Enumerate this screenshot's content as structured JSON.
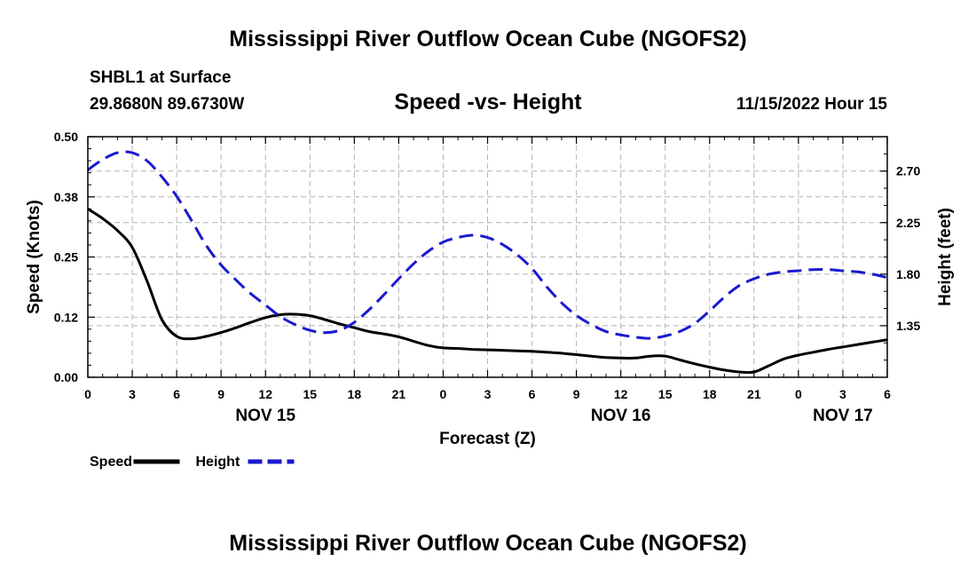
{
  "header": {
    "title": "Mississippi River Outflow Ocean Cube (NGOFS2)",
    "station": "SHBL1 at Surface",
    "coords": "29.8680N  89.6730W",
    "subtitle": "Speed -vs- Height",
    "datetime": "11/15/2022 Hour 15"
  },
  "footer": {
    "title": "Mississippi River Outflow Ocean Cube (NGOFS2)"
  },
  "chart_data": {
    "type": "line",
    "xlabel": "Forecast (Z)",
    "ylabel_left": "Speed (Knots)",
    "ylabel_right": "Height (feet)",
    "x_range_hours": [
      0,
      54
    ],
    "x_tick_hours": [
      0,
      3,
      6,
      9,
      12,
      15,
      18,
      21,
      24,
      27,
      30,
      33,
      36,
      39,
      42,
      45,
      48,
      51,
      54
    ],
    "x_tick_labels": [
      "0",
      "3",
      "6",
      "9",
      "12",
      "15",
      "18",
      "21",
      "0",
      "3",
      "6",
      "9",
      "12",
      "15",
      "18",
      "21",
      "0",
      "3",
      "6"
    ],
    "day_labels": [
      {
        "hour": 12,
        "label": "NOV 15"
      },
      {
        "hour": 36,
        "label": "NOV 16"
      },
      {
        "hour": 51,
        "label": "NOV 17"
      }
    ],
    "y_left": {
      "range": [
        0,
        0.5
      ],
      "ticks": [
        0,
        0.125,
        0.25,
        0.375,
        0.5
      ],
      "tick_labels": [
        "0.00",
        "0.12",
        "0.25",
        "0.38",
        "0.50"
      ]
    },
    "y_right": {
      "range": [
        0.9,
        3.0
      ],
      "ticks": [
        1.35,
        1.8,
        2.25,
        2.7
      ],
      "tick_labels": [
        "1.35",
        "1.80",
        "2.25",
        "2.70"
      ]
    },
    "grid": true,
    "legend": [
      {
        "label": "Speed",
        "color": "#000000",
        "style": "solid"
      },
      {
        "label": "Height",
        "color": "#1a1ad0",
        "style": "dashed"
      }
    ],
    "series": [
      {
        "name": "Speed",
        "axis": "left",
        "color": "#000000",
        "x": [
          0,
          1,
          2,
          3,
          4,
          5,
          6,
          7,
          8,
          9,
          10,
          11,
          12,
          13,
          14,
          15,
          16,
          17,
          18,
          19,
          20,
          21,
          22,
          23,
          24,
          25,
          26,
          27,
          28,
          29,
          30,
          31,
          32,
          33,
          34,
          35,
          36,
          37,
          38,
          39,
          40,
          41,
          42,
          43,
          44,
          45,
          46,
          47,
          48,
          49,
          50,
          51,
          52,
          53,
          54
        ],
        "values": [
          0.35,
          0.33,
          0.305,
          0.27,
          0.2,
          0.12,
          0.085,
          0.08,
          0.085,
          0.093,
          0.103,
          0.114,
          0.124,
          0.13,
          0.131,
          0.128,
          0.12,
          0.111,
          0.103,
          0.095,
          0.09,
          0.084,
          0.075,
          0.066,
          0.061,
          0.06,
          0.058,
          0.057,
          0.056,
          0.055,
          0.054,
          0.052,
          0.05,
          0.047,
          0.044,
          0.041,
          0.04,
          0.04,
          0.044,
          0.044,
          0.036,
          0.028,
          0.021,
          0.015,
          0.011,
          0.011,
          0.024,
          0.038,
          0.046,
          0.052,
          0.058,
          0.063,
          0.068,
          0.073,
          0.078
        ]
      },
      {
        "name": "Height",
        "axis": "right",
        "color": "#1a1ad0",
        "x": [
          0,
          1,
          2,
          3,
          4,
          5,
          6,
          7,
          8,
          9,
          10,
          11,
          12,
          13,
          14,
          15,
          16,
          17,
          18,
          19,
          20,
          21,
          22,
          23,
          24,
          25,
          26,
          27,
          28,
          29,
          30,
          31,
          32,
          33,
          34,
          35,
          36,
          37,
          38,
          39,
          40,
          41,
          42,
          43,
          44,
          45,
          46,
          47,
          48,
          49,
          50,
          51,
          52,
          53,
          54
        ],
        "values": [
          2.71,
          2.8,
          2.86,
          2.86,
          2.79,
          2.65,
          2.48,
          2.27,
          2.05,
          1.88,
          1.75,
          1.63,
          1.53,
          1.43,
          1.36,
          1.31,
          1.29,
          1.31,
          1.38,
          1.49,
          1.62,
          1.76,
          1.89,
          2.0,
          2.08,
          2.12,
          2.14,
          2.12,
          2.06,
          1.97,
          1.85,
          1.69,
          1.55,
          1.44,
          1.36,
          1.3,
          1.27,
          1.25,
          1.24,
          1.26,
          1.3,
          1.37,
          1.48,
          1.6,
          1.7,
          1.76,
          1.8,
          1.82,
          1.83,
          1.84,
          1.84,
          1.83,
          1.82,
          1.8,
          1.77
        ]
      }
    ]
  }
}
